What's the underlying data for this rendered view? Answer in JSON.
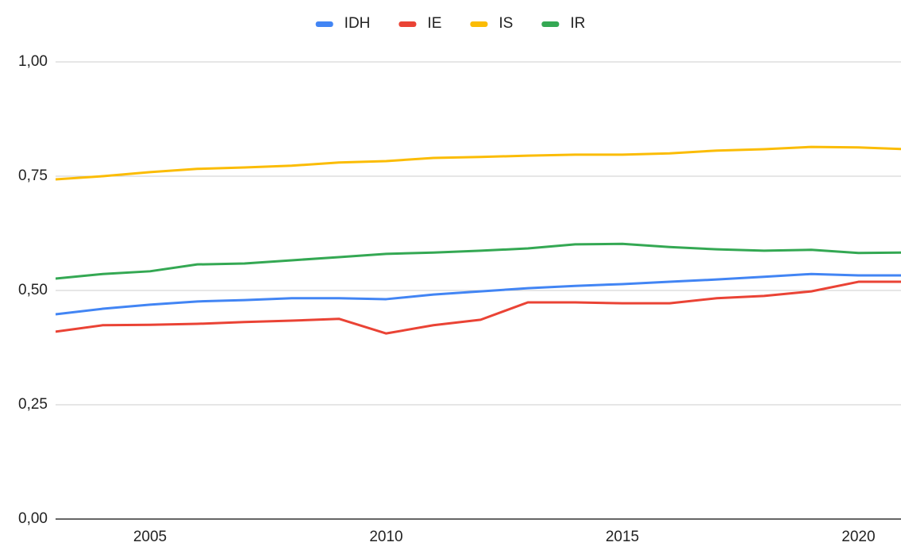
{
  "chart_data": {
    "type": "line",
    "x": [
      2003,
      2004,
      2005,
      2006,
      2007,
      2008,
      2009,
      2010,
      2011,
      2012,
      2013,
      2014,
      2015,
      2016,
      2017,
      2018,
      2019,
      2020,
      2021
    ],
    "series": [
      {
        "name": "IDH",
        "color": "#4285f4",
        "values": [
          0.448,
          0.46,
          0.469,
          0.476,
          0.479,
          0.483,
          0.483,
          0.481,
          0.491,
          0.498,
          0.505,
          0.51,
          0.514,
          0.519,
          0.524,
          0.53,
          0.536,
          0.533,
          0.533
        ]
      },
      {
        "name": "IE",
        "color": "#ea4335",
        "values": [
          0.41,
          0.424,
          0.425,
          0.427,
          0.431,
          0.434,
          0.438,
          0.406,
          0.424,
          0.436,
          0.474,
          0.474,
          0.472,
          0.472,
          0.483,
          0.488,
          0.498,
          0.519,
          0.519
        ]
      },
      {
        "name": "IS",
        "color": "#fbbc04",
        "values": [
          0.743,
          0.75,
          0.759,
          0.766,
          0.769,
          0.773,
          0.78,
          0.783,
          0.79,
          0.792,
          0.795,
          0.797,
          0.797,
          0.8,
          0.806,
          0.809,
          0.814,
          0.813,
          0.809
        ]
      },
      {
        "name": "IR",
        "color": "#34a853",
        "values": [
          0.526,
          0.536,
          0.542,
          0.557,
          0.559,
          0.566,
          0.573,
          0.58,
          0.583,
          0.587,
          0.592,
          0.601,
          0.602,
          0.595,
          0.59,
          0.587,
          0.589,
          0.582,
          0.583
        ]
      }
    ],
    "xlim": [
      2003,
      2020.9
    ],
    "xticks": [
      2005,
      2010,
      2015,
      2020
    ],
    "ylim": [
      0,
      1
    ],
    "yticks": [
      {
        "value": 0,
        "label": "0,00"
      },
      {
        "value": 0.25,
        "label": "0,25"
      },
      {
        "value": 0.5,
        "label": "0,50"
      },
      {
        "value": 0.75,
        "label": "0,75"
      },
      {
        "value": 1,
        "label": "1,00"
      }
    ],
    "grid": true,
    "legend": "top"
  }
}
